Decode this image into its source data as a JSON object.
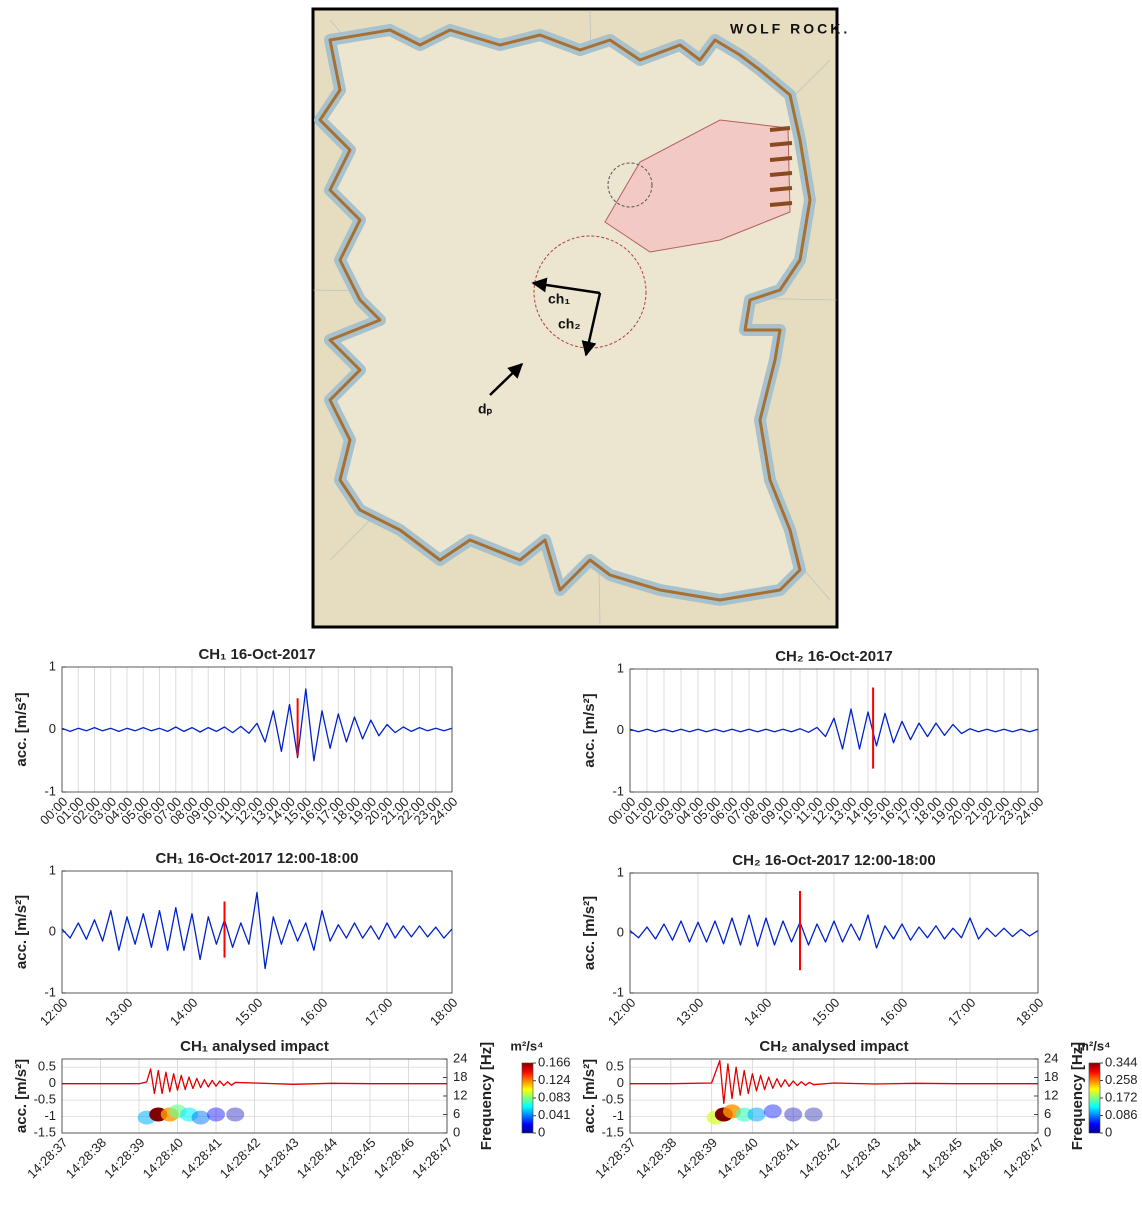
{
  "map": {
    "title": "WOLF ROCK.",
    "labels": [
      "ch₁",
      "ch₂",
      "dₚ"
    ]
  },
  "chart_data": [
    {
      "type": "line",
      "title": "CH₁ 16-Oct-2017",
      "ylabel": "acc. [m/s²]",
      "color": "#0022cc",
      "grid": "x",
      "xlim": [
        0,
        24
      ],
      "ylim": [
        -1,
        1
      ],
      "yticks": [
        -1,
        0,
        1
      ],
      "xticks": [
        {
          "value": 0,
          "label": "00:00"
        },
        {
          "value": 1,
          "label": "01:00"
        },
        {
          "value": 2,
          "label": "02:00"
        },
        {
          "value": 3,
          "label": "03:00"
        },
        {
          "value": 4,
          "label": "04:00"
        },
        {
          "value": 5,
          "label": "05:00"
        },
        {
          "value": 6,
          "label": "06:00"
        },
        {
          "value": 7,
          "label": "07:00"
        },
        {
          "value": 8,
          "label": "08:00"
        },
        {
          "value": 9,
          "label": "09:00"
        },
        {
          "value": 10,
          "label": "10:00"
        },
        {
          "value": 11,
          "label": "11:00"
        },
        {
          "value": 12,
          "label": "12:00"
        },
        {
          "value": 13,
          "label": "13:00"
        },
        {
          "value": 14,
          "label": "14:00"
        },
        {
          "value": 15,
          "label": "15:00"
        },
        {
          "value": 16,
          "label": "16:00"
        },
        {
          "value": 17,
          "label": "17:00"
        },
        {
          "value": 18,
          "label": "18:00"
        },
        {
          "value": 19,
          "label": "19:00"
        },
        {
          "value": 20,
          "label": "20:00"
        },
        {
          "value": 21,
          "label": "21:00"
        },
        {
          "value": 22,
          "label": "22:00"
        },
        {
          "value": 23,
          "label": "23:00"
        },
        {
          "value": 24,
          "label": "24:00"
        }
      ],
      "x": [
        0,
        0.5,
        1,
        1.5,
        2,
        2.5,
        3,
        3.5,
        4,
        4.5,
        5,
        5.5,
        6,
        6.5,
        7,
        7.5,
        8,
        8.5,
        9,
        9.5,
        10,
        10.5,
        11,
        11.5,
        12,
        12.5,
        13,
        13.5,
        14,
        14.5,
        15,
        15.5,
        16,
        16.5,
        17,
        17.5,
        18,
        18.5,
        19,
        19.5,
        20,
        20.5,
        21,
        21.5,
        22,
        22.5,
        23,
        23.5,
        24
      ],
      "values": [
        0.02,
        -0.03,
        0.02,
        -0.02,
        0.03,
        -0.02,
        0.02,
        -0.03,
        0.02,
        -0.02,
        0.03,
        -0.02,
        0.02,
        -0.03,
        0.04,
        -0.03,
        0.03,
        -0.04,
        0.03,
        -0.03,
        0.04,
        -0.05,
        0.05,
        -0.06,
        0.1,
        -0.2,
        0.3,
        -0.35,
        0.4,
        -0.45,
        0.65,
        -0.5,
        0.3,
        -0.3,
        0.25,
        -0.2,
        0.2,
        -0.15,
        0.15,
        -0.1,
        0.08,
        -0.05,
        0.04,
        -0.03,
        0.03,
        -0.02,
        0.02,
        -0.02,
        0.02
      ],
      "marker": {
        "x": 14.5,
        "values": [
          -0.42,
          0.5
        ],
        "color": "#ff0000"
      }
    },
    {
      "type": "line",
      "title": "CH₂ 16-Oct-2017",
      "ylabel": "acc. [m/s²]",
      "color": "#0022cc",
      "grid": "x",
      "xlim": [
        0,
        24
      ],
      "ylim": [
        -1,
        1
      ],
      "yticks": [
        -1,
        0,
        1
      ],
      "xticks": [
        {
          "value": 0,
          "label": "00:00"
        },
        {
          "value": 1,
          "label": "01:00"
        },
        {
          "value": 2,
          "label": "02:00"
        },
        {
          "value": 3,
          "label": "03:00"
        },
        {
          "value": 4,
          "label": "04:00"
        },
        {
          "value": 5,
          "label": "05:00"
        },
        {
          "value": 6,
          "label": "06:00"
        },
        {
          "value": 7,
          "label": "07:00"
        },
        {
          "value": 8,
          "label": "08:00"
        },
        {
          "value": 9,
          "label": "09:00"
        },
        {
          "value": 10,
          "label": "10:00"
        },
        {
          "value": 11,
          "label": "11:00"
        },
        {
          "value": 12,
          "label": "12:00"
        },
        {
          "value": 13,
          "label": "13:00"
        },
        {
          "value": 14,
          "label": "14:00"
        },
        {
          "value": 15,
          "label": "15:00"
        },
        {
          "value": 16,
          "label": "16:00"
        },
        {
          "value": 17,
          "label": "17:00"
        },
        {
          "value": 18,
          "label": "18:00"
        },
        {
          "value": 19,
          "label": "19:00"
        },
        {
          "value": 20,
          "label": "20:00"
        },
        {
          "value": 21,
          "label": "21:00"
        },
        {
          "value": 22,
          "label": "22:00"
        },
        {
          "value": 23,
          "label": "23:00"
        },
        {
          "value": 24,
          "label": "24:00"
        }
      ],
      "x": [
        0,
        0.5,
        1,
        1.5,
        2,
        2.5,
        3,
        3.5,
        4,
        4.5,
        5,
        5.5,
        6,
        6.5,
        7,
        7.5,
        8,
        8.5,
        9,
        9.5,
        10,
        10.5,
        11,
        11.5,
        12,
        12.5,
        13,
        13.5,
        14,
        14.5,
        15,
        15.5,
        16,
        16.5,
        17,
        17.5,
        18,
        18.5,
        19,
        19.5,
        20,
        20.5,
        21,
        21.5,
        22,
        22.5,
        23,
        23.5,
        24
      ],
      "values": [
        0.02,
        -0.02,
        0.02,
        -0.02,
        0.02,
        -0.02,
        0.02,
        -0.02,
        0.02,
        -0.02,
        0.02,
        -0.02,
        0.02,
        -0.02,
        0.02,
        -0.02,
        0.02,
        -0.02,
        0.02,
        -0.02,
        0.03,
        -0.03,
        0.05,
        -0.1,
        0.2,
        -0.3,
        0.35,
        -0.3,
        0.3,
        -0.25,
        0.28,
        -0.2,
        0.15,
        -0.15,
        0.12,
        -0.1,
        0.12,
        -0.08,
        0.1,
        -0.05,
        0.03,
        -0.02,
        0.02,
        -0.02,
        0.02,
        -0.02,
        0.02,
        -0.02,
        0.02
      ],
      "marker": {
        "x": 14.3,
        "values": [
          -0.62,
          0.7
        ],
        "color": "#ff0000"
      }
    },
    {
      "type": "line",
      "title": "CH₁ 16-Oct-2017 12:00-18:00",
      "ylabel": "acc. [m/s²]",
      "color": "#0022cc",
      "grid": "x",
      "xlim": [
        12,
        18
      ],
      "ylim": [
        -1,
        1
      ],
      "yticks": [
        -1,
        0,
        1
      ],
      "xticks": [
        {
          "value": 12,
          "label": "12:00"
        },
        {
          "value": 13,
          "label": "13:00"
        },
        {
          "value": 14,
          "label": "14:00"
        },
        {
          "value": 15,
          "label": "15:00"
        },
        {
          "value": 16,
          "label": "16:00"
        },
        {
          "value": 17,
          "label": "17:00"
        },
        {
          "value": 18,
          "label": "18:00"
        }
      ],
      "x": [
        12,
        12.125,
        12.25,
        12.375,
        12.5,
        12.625,
        12.75,
        12.875,
        13,
        13.125,
        13.25,
        13.375,
        13.5,
        13.625,
        13.75,
        13.875,
        14,
        14.125,
        14.25,
        14.375,
        14.5,
        14.625,
        14.75,
        14.875,
        15,
        15.125,
        15.25,
        15.375,
        15.5,
        15.625,
        15.75,
        15.875,
        16,
        16.125,
        16.25,
        16.375,
        16.5,
        16.625,
        16.75,
        16.875,
        17,
        17.125,
        17.25,
        17.375,
        17.5,
        17.625,
        17.75,
        17.875,
        18
      ],
      "values": [
        0.05,
        -0.1,
        0.15,
        -0.12,
        0.2,
        -0.15,
        0.35,
        -0.3,
        0.25,
        -0.2,
        0.3,
        -0.25,
        0.35,
        -0.3,
        0.4,
        -0.3,
        0.3,
        -0.45,
        0.25,
        -0.2,
        0.2,
        -0.25,
        0.15,
        -0.2,
        0.65,
        -0.6,
        0.25,
        -0.2,
        0.2,
        -0.15,
        0.15,
        -0.3,
        0.35,
        -0.15,
        0.12,
        -0.1,
        0.15,
        -0.1,
        0.1,
        -0.12,
        0.15,
        -0.1,
        0.1,
        -0.08,
        0.1,
        -0.08,
        0.08,
        -0.1,
        0.05
      ],
      "marker": {
        "x": 14.5,
        "values": [
          -0.42,
          0.5
        ],
        "color": "#ff0000"
      }
    },
    {
      "type": "line",
      "title": "CH₂ 16-Oct-2017 12:00-18:00",
      "ylabel": "acc. [m/s²]",
      "color": "#0022cc",
      "grid": "x",
      "xlim": [
        12,
        18
      ],
      "ylim": [
        -1,
        1
      ],
      "yticks": [
        -1,
        0,
        1
      ],
      "xticks": [
        {
          "value": 12,
          "label": "12:00"
        },
        {
          "value": 13,
          "label": "13:00"
        },
        {
          "value": 14,
          "label": "14:00"
        },
        {
          "value": 15,
          "label": "15:00"
        },
        {
          "value": 16,
          "label": "16:00"
        },
        {
          "value": 17,
          "label": "17:00"
        },
        {
          "value": 18,
          "label": "18:00"
        }
      ],
      "x": [
        12,
        12.125,
        12.25,
        12.375,
        12.5,
        12.625,
        12.75,
        12.875,
        13,
        13.125,
        13.25,
        13.375,
        13.5,
        13.625,
        13.75,
        13.875,
        14,
        14.125,
        14.25,
        14.375,
        14.5,
        14.625,
        14.75,
        14.875,
        15,
        15.125,
        15.25,
        15.375,
        15.5,
        15.625,
        15.75,
        15.875,
        16,
        16.125,
        16.25,
        16.375,
        16.5,
        16.625,
        16.75,
        16.875,
        17,
        17.125,
        17.25,
        17.375,
        17.5,
        17.625,
        17.75,
        17.875,
        18
      ],
      "values": [
        0.04,
        -0.08,
        0.1,
        -0.1,
        0.15,
        -0.12,
        0.2,
        -0.15,
        0.18,
        -0.15,
        0.2,
        -0.18,
        0.25,
        -0.2,
        0.3,
        -0.22,
        0.25,
        -0.2,
        0.2,
        -0.15,
        0.18,
        -0.2,
        0.15,
        -0.15,
        0.2,
        -0.15,
        0.15,
        -0.12,
        0.3,
        -0.25,
        0.12,
        -0.1,
        0.15,
        -0.12,
        0.1,
        -0.08,
        0.12,
        -0.1,
        0.08,
        -0.08,
        0.25,
        -0.1,
        0.08,
        -0.06,
        0.08,
        -0.06,
        0.06,
        -0.05,
        0.04
      ],
      "marker": {
        "x": 14.5,
        "values": [
          -0.62,
          0.7
        ],
        "color": "#ff0000"
      }
    },
    {
      "type": "line",
      "title": "CH₁ analysed impact",
      "ylabel": "acc. [m/s²]",
      "color": "#e00000",
      "grid": "both",
      "xlim": [
        0,
        10
      ],
      "ylim": [
        -1.5,
        0.75
      ],
      "yticks": [
        -1.5,
        -1,
        -0.5,
        0,
        0.5
      ],
      "xticks": [
        {
          "value": 0,
          "label": "14:28:37"
        },
        {
          "value": 1,
          "label": "14:28:38"
        },
        {
          "value": 2,
          "label": "14:28:39"
        },
        {
          "value": 3,
          "label": "14:28:40"
        },
        {
          "value": 4,
          "label": "14:28:41"
        },
        {
          "value": 5,
          "label": "14:28:42"
        },
        {
          "value": 6,
          "label": "14:28:43"
        },
        {
          "value": 7,
          "label": "14:28:44"
        },
        {
          "value": 8,
          "label": "14:28:45"
        },
        {
          "value": 9,
          "label": "14:28:46"
        },
        {
          "value": 10,
          "label": "14:28:47"
        }
      ],
      "x": [
        0,
        1,
        2,
        2.2,
        2.3,
        2.4,
        2.5,
        2.6,
        2.7,
        2.8,
        2.9,
        3,
        3.1,
        3.2,
        3.3,
        3.4,
        3.5,
        3.6,
        3.7,
        3.8,
        3.9,
        4,
        4.1,
        4.2,
        4.3,
        4.4,
        4.5,
        5,
        6,
        7,
        8,
        9,
        10
      ],
      "values": [
        0,
        0,
        0,
        0.05,
        0.45,
        -0.3,
        0.4,
        -0.3,
        0.35,
        -0.25,
        0.3,
        -0.2,
        0.25,
        -0.18,
        0.2,
        -0.15,
        0.16,
        -0.12,
        0.12,
        -0.1,
        0.1,
        -0.08,
        0.08,
        -0.06,
        0.06,
        -0.05,
        0.04,
        0.02,
        -0.02,
        0.01,
        0,
        0,
        0
      ],
      "y2label": "Frequency [Hz]",
      "y2lim": [
        0,
        24
      ],
      "y2ticks": [
        0,
        6,
        12,
        18,
        24
      ],
      "colormap": "jet",
      "colorbar": {
        "label": "m²/s⁴",
        "lim": [
          0,
          0.166
        ],
        "ticks": [
          0,
          0.041,
          0.083,
          0.124,
          0.166
        ]
      },
      "spectrogram": {
        "t": [
          2.2,
          2.5,
          2.8,
          3.0,
          3.3,
          3.6,
          4.0,
          4.5
        ],
        "f": [
          5,
          6,
          6,
          7,
          6,
          5,
          6,
          6
        ],
        "p": [
          0.05,
          0.166,
          0.12,
          0.08,
          0.06,
          0.04,
          0.02,
          0.01
        ]
      }
    },
    {
      "type": "line",
      "title": "CH₂ analysed impact",
      "ylabel": "acc. [m/s²]",
      "color": "#e00000",
      "grid": "both",
      "xlim": [
        0,
        10
      ],
      "ylim": [
        -1.5,
        0.75
      ],
      "yticks": [
        -1.5,
        -1,
        -0.5,
        0,
        0.5
      ],
      "xticks": [
        {
          "value": 0,
          "label": "14:28:37"
        },
        {
          "value": 1,
          "label": "14:28:38"
        },
        {
          "value": 2,
          "label": "14:28:39"
        },
        {
          "value": 3,
          "label": "14:28:40"
        },
        {
          "value": 4,
          "label": "14:28:41"
        },
        {
          "value": 5,
          "label": "14:28:42"
        },
        {
          "value": 6,
          "label": "14:28:43"
        },
        {
          "value": 7,
          "label": "14:28:44"
        },
        {
          "value": 8,
          "label": "14:28:45"
        },
        {
          "value": 9,
          "label": "14:28:46"
        },
        {
          "value": 10,
          "label": "14:28:47"
        }
      ],
      "x": [
        0,
        1,
        2,
        2.2,
        2.3,
        2.4,
        2.5,
        2.6,
        2.7,
        2.8,
        2.9,
        3,
        3.1,
        3.2,
        3.3,
        3.4,
        3.5,
        3.6,
        3.7,
        3.8,
        3.9,
        4,
        4.1,
        4.2,
        4.3,
        4.4,
        4.5,
        5,
        6,
        7,
        8,
        9,
        10
      ],
      "values": [
        0,
        0,
        0.02,
        0.7,
        -0.6,
        0.6,
        -0.45,
        0.5,
        -0.35,
        0.4,
        -0.3,
        0.3,
        -0.22,
        0.25,
        -0.18,
        0.2,
        -0.14,
        0.15,
        -0.1,
        0.12,
        -0.08,
        0.08,
        -0.06,
        0.06,
        -0.05,
        0.04,
        -0.03,
        0.02,
        -0.01,
        0.01,
        0,
        0,
        0
      ],
      "y2label": "Frequency [Hz]",
      "y2lim": [
        0,
        24
      ],
      "y2ticks": [
        0,
        6,
        12,
        18,
        24
      ],
      "colormap": "jet",
      "colorbar": {
        "label": "m²/s⁴",
        "lim": [
          0,
          0.344
        ],
        "ticks": [
          0,
          0.086,
          0.172,
          0.258,
          0.344
        ]
      },
      "spectrogram": {
        "t": [
          2.1,
          2.3,
          2.5,
          2.8,
          3.1,
          3.5,
          4.0,
          4.5
        ],
        "f": [
          5,
          6,
          7,
          6,
          6,
          7,
          6,
          6
        ],
        "p": [
          0.2,
          0.344,
          0.25,
          0.15,
          0.1,
          0.05,
          0.02,
          0.01
        ]
      }
    }
  ]
}
